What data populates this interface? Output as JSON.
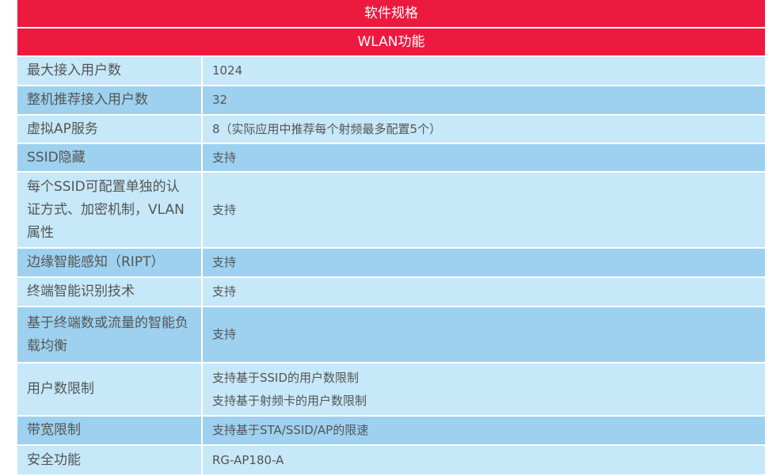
{
  "title": "软件规格",
  "section": "WLAN功能",
  "rows": [
    {
      "name": "最大接入用户数",
      "value": [
        "1024"
      ]
    },
    {
      "name": "整机推荐接入用户数",
      "value": [
        "32"
      ]
    },
    {
      "name": "虚拟AP服务",
      "value": [
        "8（实际应用中推荐每个射频最多配置5个）"
      ]
    },
    {
      "name": "SSID隐藏",
      "value": [
        "支持"
      ]
    },
    {
      "name": "每个SSID可配置单独的认证方式、加密机制，VLAN属性",
      "value": [
        "支持"
      ]
    },
    {
      "name": "边缘智能感知（RIPT）",
      "value": [
        "支持"
      ]
    },
    {
      "name": "终端智能识别技术",
      "value": [
        "支持"
      ]
    },
    {
      "name": "基于终端数或流量的智能负载均衡",
      "value": [
        "支持"
      ]
    },
    {
      "name": "用户数限制",
      "value": [
        "支持基于SSID的用户数限制",
        "支持基于射频卡的用户数限制"
      ]
    },
    {
      "name": "带宽限制",
      "value": [
        "支持基于STA/SSID/AP的限速"
      ]
    },
    {
      "name": "安全功能",
      "value": [
        "RG-AP180-A"
      ]
    }
  ]
}
